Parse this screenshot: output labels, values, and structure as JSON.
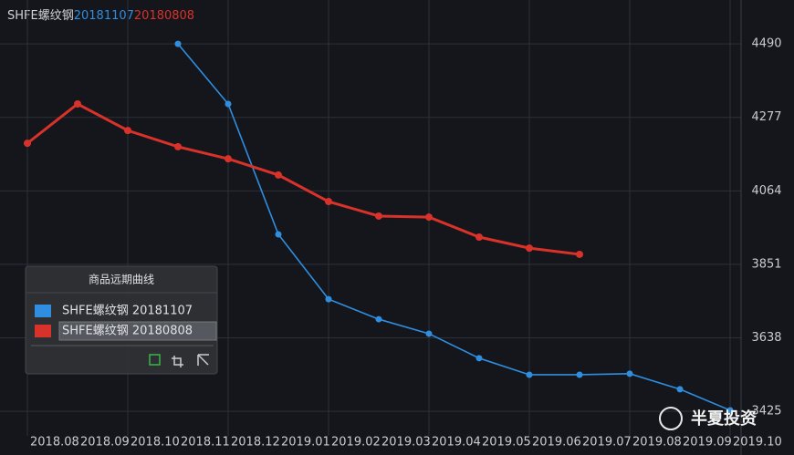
{
  "chart_data": {
    "type": "line",
    "title": "SHFE螺纹钢",
    "title_dates": [
      "20181107",
      "20180808"
    ],
    "categories": [
      "2018.08",
      "2018.09",
      "2018.10",
      "2018.11",
      "2018.12",
      "2019.01",
      "2019.02",
      "2019.03",
      "2019.04",
      "2019.05",
      "2019.06",
      "2019.07",
      "2019.08",
      "2019.09",
      "2019.10"
    ],
    "series": [
      {
        "name": "SHFE螺纹钢 20181107",
        "color": "#2f8ee0",
        "values": [
          null,
          null,
          null,
          4490,
          4316,
          3938,
          3750,
          3692,
          3650,
          3579,
          3531,
          3531,
          3534,
          3489,
          3428
        ]
      },
      {
        "name": "SHFE螺纹钢 20180808",
        "color": "#d8322a",
        "values": [
          4202,
          4316,
          4239,
          4192,
          4157,
          4110,
          4033,
          3991,
          3988,
          3930,
          3898,
          3880,
          null,
          null,
          null
        ]
      }
    ],
    "ylim": [
      3375,
      4538
    ],
    "yticks": [
      3425,
      3638,
      3851,
      4064,
      4277,
      4490
    ],
    "grid": true,
    "legend_title": "商品远期曲线",
    "watermark": "半夏投资"
  }
}
